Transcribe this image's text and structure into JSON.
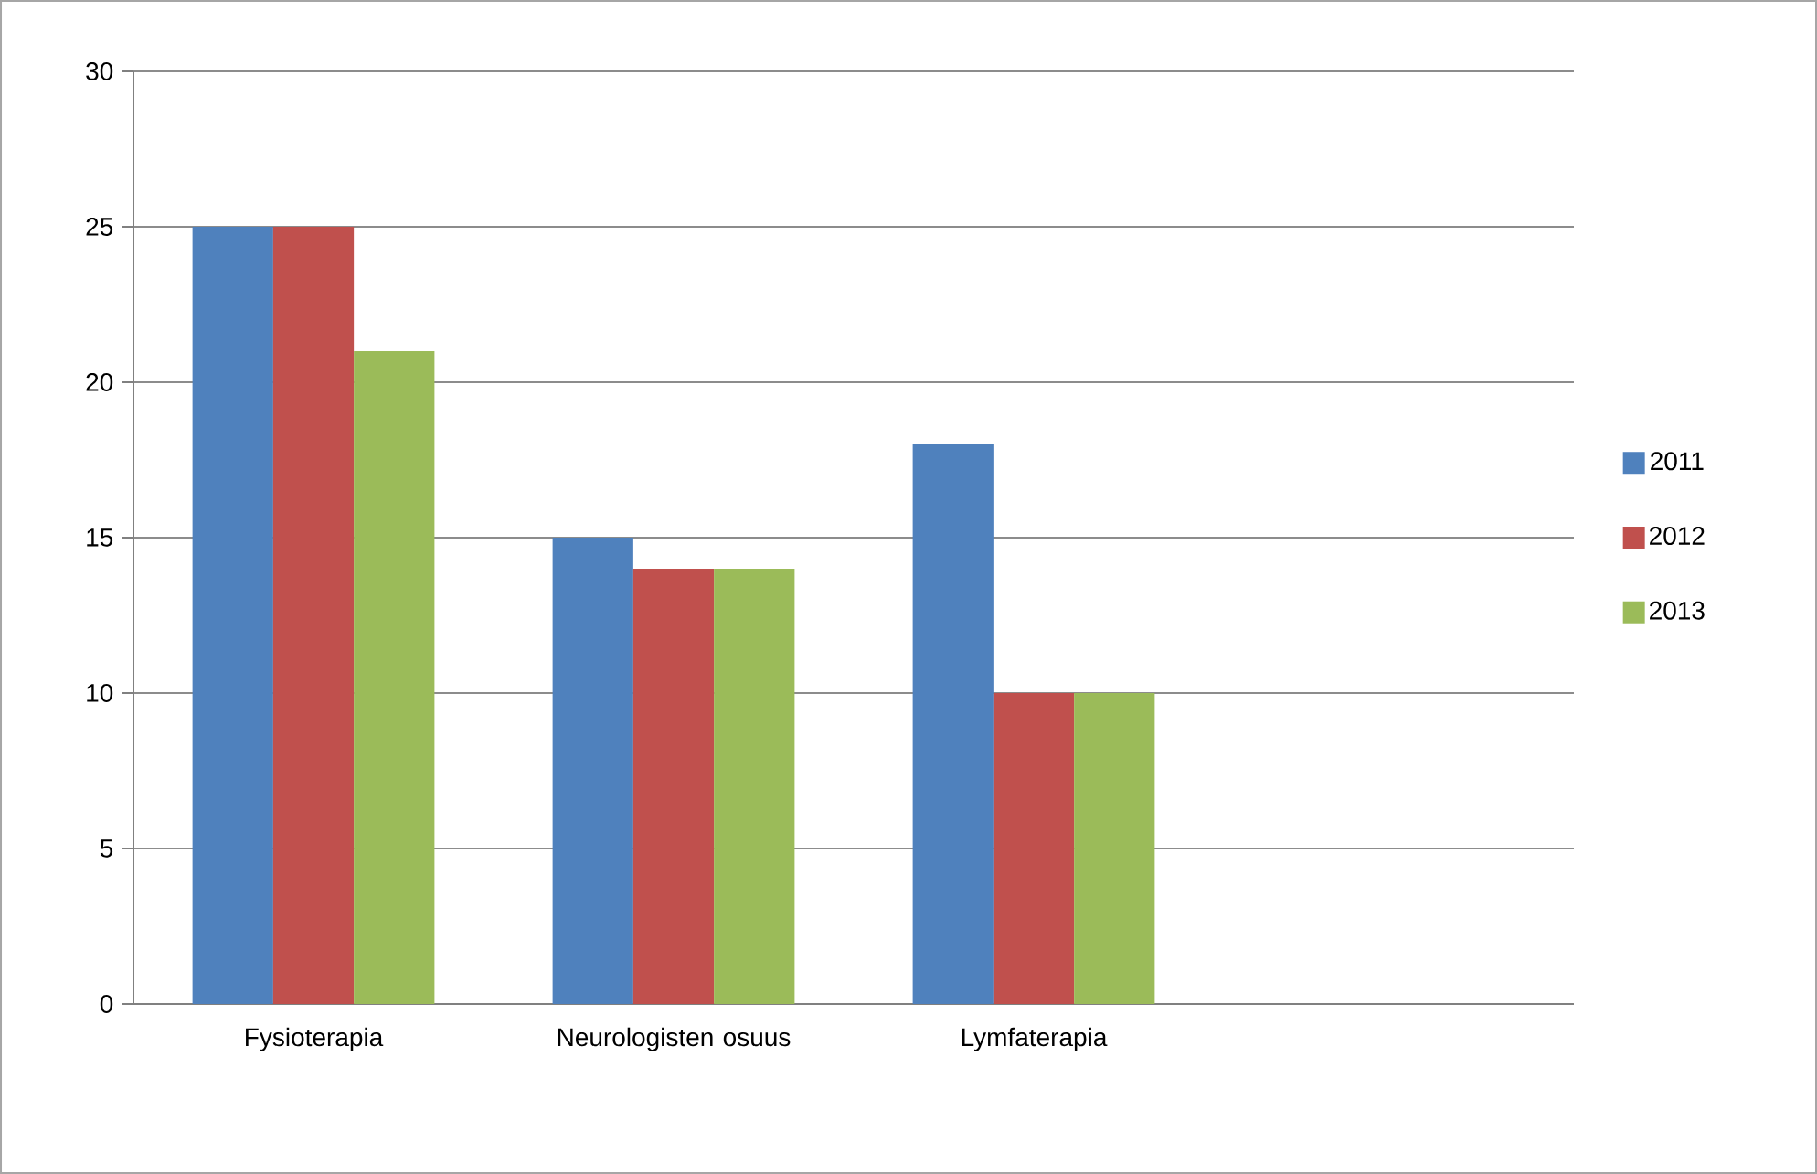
{
  "chart_data": {
    "type": "bar",
    "categories": [
      "Fysioterapia",
      "Neurologisten osuus",
      "Lymfaterapia",
      null
    ],
    "series": [
      {
        "name": "2011",
        "color": "#4f81bd",
        "values": [
          25,
          15,
          18,
          null
        ]
      },
      {
        "name": "2012",
        "color": "#c0504d",
        "values": [
          25,
          14,
          10,
          null
        ]
      },
      {
        "name": "2013",
        "color": "#9bbb59",
        "values": [
          21,
          14,
          10,
          null
        ]
      }
    ],
    "ylim": [
      0,
      30
    ],
    "yticks": [
      0,
      5,
      10,
      15,
      20,
      25,
      30
    ],
    "grid": "y",
    "legend": "right"
  }
}
